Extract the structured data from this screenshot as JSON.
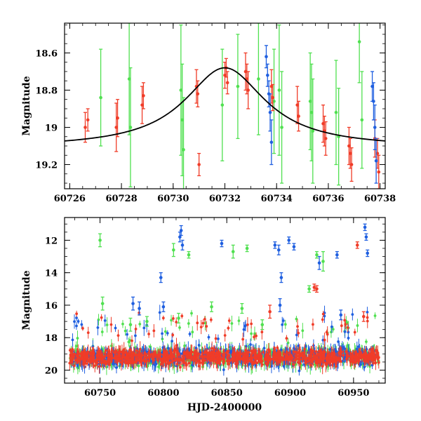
{
  "colors": {
    "red": "#f03c28",
    "green": "#50e050",
    "blue": "#1f5fe0",
    "model": "#000000"
  },
  "chart_data": [
    {
      "type": "scatter",
      "title": "",
      "xlabel": "",
      "ylabel": "Magnitude",
      "xlim": [
        60725.8,
        60738.2
      ],
      "ylim": [
        19.33,
        18.44
      ],
      "y_inverted": true,
      "grid": false,
      "x_ticks": [
        60726,
        60728,
        60730,
        60732,
        60734,
        60736,
        60738
      ],
      "y_ticks": [
        18.6,
        18.8,
        19,
        19.2
      ],
      "x_tick_labels": [
        "60726",
        "60728",
        "60730",
        "60732",
        "60734",
        "60736",
        "60738"
      ],
      "y_tick_labels": [
        "18.6",
        "18.8",
        "19",
        "19.2"
      ],
      "model_curve": {
        "type": "line",
        "peak_x": 60732.0,
        "peak_y": 18.68,
        "baseline_y": 19.11,
        "width_days": 1.9
      },
      "series": [
        {
          "name": "red",
          "color": "#f03c28",
          "points": [
            [
              60726.6,
              19.0,
              0.08
            ],
            [
              60726.7,
              18.96,
              0.06
            ],
            [
              60727.8,
              19.0,
              0.13
            ],
            [
              60727.85,
              18.95,
              0.1
            ],
            [
              60728.8,
              18.88,
              0.1
            ],
            [
              60728.85,
              18.83,
              0.07
            ],
            [
              60730.9,
              18.78,
              0.09
            ],
            [
              60730.95,
              18.82,
              0.07
            ],
            [
              60731.0,
              19.2,
              0.06
            ],
            [
              60732.0,
              18.72,
              0.07
            ],
            [
              60732.05,
              18.68,
              0.05
            ],
            [
              60732.1,
              18.76,
              0.06
            ],
            [
              60732.8,
              18.7,
              0.1
            ],
            [
              60732.85,
              18.74,
              0.08
            ],
            [
              60732.9,
              18.8,
              0.1
            ],
            [
              60733.8,
              18.78,
              0.09
            ],
            [
              60733.85,
              18.84,
              0.07
            ],
            [
              60734.8,
              18.88,
              0.1
            ],
            [
              60734.85,
              18.94,
              0.08
            ],
            [
              60735.8,
              18.98,
              0.1
            ],
            [
              60735.85,
              19.02,
              0.08
            ],
            [
              60735.9,
              19.06,
              0.09
            ],
            [
              60736.8,
              19.1,
              0.1
            ],
            [
              60736.85,
              19.14,
              0.08
            ],
            [
              60736.9,
              19.2,
              0.09
            ],
            [
              60737.8,
              19.06,
              0.1
            ],
            [
              60737.9,
              19.14,
              0.08
            ],
            [
              60737.95,
              19.24,
              0.09
            ]
          ]
        },
        {
          "name": "green",
          "color": "#50e050",
          "points": [
            [
              60727.2,
              18.84,
              0.26
            ],
            [
              60728.3,
              18.74,
              0.3
            ],
            [
              60728.35,
              19.0,
              0.32
            ],
            [
              60730.3,
              18.8,
              0.35
            ],
            [
              60730.35,
              18.96,
              0.3
            ],
            [
              60730.4,
              19.12,
              0.28
            ],
            [
              60731.9,
              18.88,
              0.3
            ],
            [
              60732.5,
              18.78,
              0.28
            ],
            [
              60733.3,
              18.74,
              0.3
            ],
            [
              60733.9,
              18.86,
              0.28
            ],
            [
              60734.1,
              18.8,
              0.35
            ],
            [
              60734.2,
              19.0,
              0.3
            ],
            [
              60735.3,
              18.86,
              0.26
            ],
            [
              60735.35,
              18.92,
              0.26
            ],
            [
              60735.4,
              19.02,
              0.28
            ],
            [
              60736.3,
              18.92,
              0.28
            ],
            [
              60736.4,
              19.05,
              0.26
            ],
            [
              60737.2,
              18.54,
              0.22
            ],
            [
              60737.3,
              18.96,
              0.26
            ]
          ]
        },
        {
          "name": "blue",
          "color": "#1f5fe0",
          "points": [
            [
              60733.6,
              18.62,
              0.06
            ],
            [
              60733.65,
              18.72,
              0.06
            ],
            [
              60733.7,
              18.82,
              0.07
            ],
            [
              60733.75,
              18.92,
              0.1
            ],
            [
              60733.8,
              19.08,
              0.12
            ],
            [
              60737.7,
              18.78,
              0.08
            ],
            [
              60737.75,
              18.86,
              0.1
            ],
            [
              60737.8,
              19.0,
              0.12
            ],
            [
              60737.85,
              19.18,
              0.12
            ]
          ]
        }
      ]
    },
    {
      "type": "scatter",
      "title": "",
      "xlabel": "HJD-2400000",
      "ylabel": "Magnitude",
      "xlim": [
        60722,
        60975
      ],
      "ylim": [
        20.8,
        10.6
      ],
      "y_inverted": true,
      "grid": false,
      "x_ticks": [
        60750,
        60800,
        60850,
        60900,
        60950
      ],
      "y_ticks": [
        12,
        14,
        16,
        18,
        20
      ],
      "x_tick_labels": [
        "60750",
        "60800",
        "60850",
        "60900",
        "60950"
      ],
      "y_tick_labels": [
        "12",
        "14",
        "16",
        "18",
        "20"
      ],
      "dense_band": {
        "x_range": [
          60726,
          60970
        ],
        "y_center": 19.2,
        "scatter": 0.55
      },
      "series": [
        {
          "name": "green_outliers",
          "color": "#50e050",
          "points": [
            [
              60750,
              12.0,
              0.4
            ],
            [
              60752,
              15.9,
              0.4
            ],
            [
              60774,
              17.2,
              0.4
            ],
            [
              60787,
              17.0,
              0.3
            ],
            [
              60808,
              12.6,
              0.4
            ],
            [
              60812,
              16.8,
              0.3
            ],
            [
              60820,
              12.9,
              0.2
            ],
            [
              60838,
              16.1,
              0.3
            ],
            [
              60855,
              12.7,
              0.4
            ],
            [
              60862,
              16.2,
              0.3
            ],
            [
              60866,
              12.5,
              0.2
            ],
            [
              60878,
              17.2,
              0.3
            ],
            [
              60915,
              15.0,
              0.2
            ],
            [
              60921,
              12.9,
              0.2
            ],
            [
              60926,
              13.3,
              0.6
            ]
          ]
        },
        {
          "name": "blue_outliers",
          "color": "#1f5fe0",
          "points": [
            [
              60776,
              15.9,
              0.4
            ],
            [
              60781,
              16.2,
              0.4
            ],
            [
              60798,
              14.3,
              0.3
            ],
            [
              60800,
              16.1,
              0.3
            ],
            [
              60813,
              11.8,
              0.3
            ],
            [
              60814,
              11.4,
              0.3
            ],
            [
              60815,
              12.3,
              0.3
            ],
            [
              60846,
              12.2,
              0.2
            ],
            [
              60888,
              12.3,
              0.2
            ],
            [
              60891,
              12.6,
              0.3
            ],
            [
              60893,
              14.3,
              0.3
            ],
            [
              60899,
              12.0,
              0.2
            ],
            [
              60903,
              12.4,
              0.2
            ],
            [
              60923,
              13.4,
              0.4
            ],
            [
              60937,
              12.9,
              0.2
            ],
            [
              60959,
              11.2,
              0.2
            ],
            [
              60960,
              11.8,
              0.2
            ],
            [
              60961,
              12.8,
              0.2
            ],
            [
              60892,
              16.0,
              0.4
            ],
            [
              60940,
              16.6,
              0.3
            ]
          ]
        },
        {
          "name": "red_outliers",
          "color": "#f03c28",
          "points": [
            [
              60884,
              16.4,
              0.4
            ],
            [
              60919,
              14.9,
              0.2
            ],
            [
              60921,
              15.0,
              0.2
            ],
            [
              60953,
              12.3,
              0.2
            ],
            [
              60958,
              16.7,
              0.3
            ]
          ]
        }
      ]
    }
  ]
}
